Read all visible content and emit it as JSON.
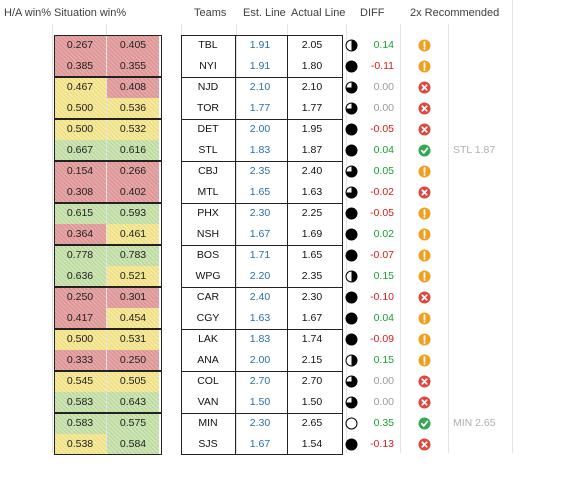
{
  "headers": {
    "ha": "H/A win%",
    "sit": "Situation win%",
    "teams": "Teams",
    "est": "Est. Line",
    "act": "Actual Line",
    "diff": "DIFF",
    "rec": "2x Recommended"
  },
  "colors": {
    "red_cell": "#e8a6a6",
    "yellow_cell": "#f7ea98",
    "green_cell": "#cde6b3",
    "est_blue": "#2a6fa5",
    "pos_green": "#1b9e36",
    "neg_red": "#d81b1b",
    "warn_orange": "#f0a020",
    "check_green": "#34a853",
    "x_red": "#e0463c"
  },
  "icons": {
    "moon_values": "fraction of circle filled black (0-1)",
    "rec_types": [
      "warn-icon",
      "x-icon",
      "check-icon"
    ]
  },
  "games": [
    [
      {
        "ha": "0.267",
        "ha_c": "red",
        "sit": "0.405",
        "sit_c": "red",
        "team": "TBL",
        "est": "1.91",
        "act": "2.05",
        "moon": 0.5,
        "diff": "0.14",
        "ds": "pos",
        "rec": "warn",
        "note": ""
      },
      {
        "ha": "0.385",
        "ha_c": "red",
        "sit": "0.355",
        "sit_c": "red",
        "team": "NYI",
        "est": "1.91",
        "act": "1.80",
        "moon": 1,
        "diff": "-0.11",
        "ds": "neg",
        "rec": "warn",
        "note": ""
      }
    ],
    [
      {
        "ha": "0.467",
        "ha_c": "yel",
        "sit": "0.408",
        "sit_c": "red",
        "team": "NJD",
        "est": "2.10",
        "act": "2.10",
        "moon": 0.75,
        "diff": "0.00",
        "ds": "zero",
        "rec": "x",
        "note": ""
      },
      {
        "ha": "0.500",
        "ha_c": "yel",
        "sit": "0.536",
        "sit_c": "yel",
        "team": "TOR",
        "est": "1.77",
        "act": "1.77",
        "moon": 0.75,
        "diff": "0.00",
        "ds": "zero",
        "rec": "x",
        "note": ""
      }
    ],
    [
      {
        "ha": "0.500",
        "ha_c": "yel",
        "sit": "0.532",
        "sit_c": "yel",
        "team": "DET",
        "est": "2.00",
        "act": "1.95",
        "moon": 1,
        "diff": "-0.05",
        "ds": "neg",
        "rec": "x",
        "note": ""
      },
      {
        "ha": "0.667",
        "ha_c": "grn",
        "sit": "0.616",
        "sit_c": "grn",
        "team": "STL",
        "est": "1.83",
        "act": "1.87",
        "moon": 1,
        "diff": "0.04",
        "ds": "pos",
        "rec": "check",
        "note": "STL 1.87"
      }
    ],
    [
      {
        "ha": "0.154",
        "ha_c": "red",
        "sit": "0.266",
        "sit_c": "red",
        "team": "CBJ",
        "est": "2.35",
        "act": "2.40",
        "moon": 0.75,
        "diff": "0.05",
        "ds": "pos",
        "rec": "warn",
        "note": ""
      },
      {
        "ha": "0.308",
        "ha_c": "red",
        "sit": "0.402",
        "sit_c": "red",
        "team": "MTL",
        "est": "1.65",
        "act": "1.63",
        "moon": 0.75,
        "diff": "-0.02",
        "ds": "neg",
        "rec": "x",
        "note": ""
      }
    ],
    [
      {
        "ha": "0.615",
        "ha_c": "grn",
        "sit": "0.593",
        "sit_c": "grn",
        "team": "PHX",
        "est": "2.30",
        "act": "2.25",
        "moon": 1,
        "diff": "-0.05",
        "ds": "neg",
        "rec": "warn",
        "note": ""
      },
      {
        "ha": "0.364",
        "ha_c": "red",
        "sit": "0.461",
        "sit_c": "yel",
        "team": "NSH",
        "est": "1.67",
        "act": "1.69",
        "moon": 1,
        "diff": "0.02",
        "ds": "pos",
        "rec": "warn",
        "note": ""
      }
    ],
    [
      {
        "ha": "0.778",
        "ha_c": "grn",
        "sit": "0.783",
        "sit_c": "grn",
        "team": "BOS",
        "est": "1.71",
        "act": "1.65",
        "moon": 1,
        "diff": "-0.07",
        "ds": "neg",
        "rec": "warn",
        "note": ""
      },
      {
        "ha": "0.636",
        "ha_c": "grn",
        "sit": "0.521",
        "sit_c": "yel",
        "team": "WPG",
        "est": "2.20",
        "act": "2.35",
        "moon": 0.5,
        "diff": "0.15",
        "ds": "pos",
        "rec": "warn",
        "note": ""
      }
    ],
    [
      {
        "ha": "0.250",
        "ha_c": "red",
        "sit": "0.301",
        "sit_c": "red",
        "team": "CAR",
        "est": "2.40",
        "act": "2.30",
        "moon": 1,
        "diff": "-0.10",
        "ds": "neg",
        "rec": "x",
        "note": ""
      },
      {
        "ha": "0.417",
        "ha_c": "red",
        "sit": "0.454",
        "sit_c": "yel",
        "team": "CGY",
        "est": "1.63",
        "act": "1.67",
        "moon": 1,
        "diff": "0.04",
        "ds": "pos",
        "rec": "warn",
        "note": ""
      }
    ],
    [
      {
        "ha": "0.500",
        "ha_c": "yel",
        "sit": "0.531",
        "sit_c": "yel",
        "team": "LAK",
        "est": "1.83",
        "act": "1.74",
        "moon": 1,
        "diff": "-0.09",
        "ds": "neg",
        "rec": "warn",
        "note": ""
      },
      {
        "ha": "0.333",
        "ha_c": "red",
        "sit": "0.250",
        "sit_c": "red",
        "team": "ANA",
        "est": "2.00",
        "act": "2.15",
        "moon": 0.5,
        "diff": "0.15",
        "ds": "pos",
        "rec": "warn",
        "note": ""
      }
    ],
    [
      {
        "ha": "0.545",
        "ha_c": "yel",
        "sit": "0.505",
        "sit_c": "yel",
        "team": "COL",
        "est": "2.70",
        "act": "2.70",
        "moon": 0.75,
        "diff": "0.00",
        "ds": "zero",
        "rec": "x",
        "note": ""
      },
      {
        "ha": "0.583",
        "ha_c": "grn",
        "sit": "0.643",
        "sit_c": "grn",
        "team": "VAN",
        "est": "1.50",
        "act": "1.50",
        "moon": 0.75,
        "diff": "0.00",
        "ds": "zero",
        "rec": "x",
        "note": ""
      }
    ],
    [
      {
        "ha": "0.583",
        "ha_c": "grn",
        "sit": "0.575",
        "sit_c": "grn",
        "team": "MIN",
        "est": "2.30",
        "act": "2.65",
        "moon": 0,
        "diff": "0.35",
        "ds": "pos",
        "rec": "check",
        "note": "MIN 2.65"
      },
      {
        "ha": "0.538",
        "ha_c": "yel",
        "sit": "0.584",
        "sit_c": "grn",
        "team": "SJS",
        "est": "1.67",
        "act": "1.54",
        "moon": 1,
        "diff": "-0.13",
        "ds": "neg",
        "rec": "x",
        "note": ""
      }
    ]
  ]
}
